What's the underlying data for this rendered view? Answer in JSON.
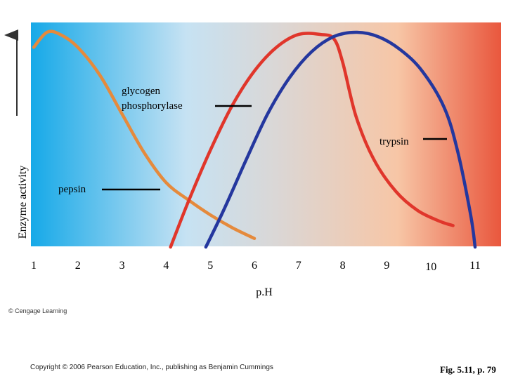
{
  "chart_data": {
    "type": "line",
    "xlabel": "p.H",
    "ylabel": "Enzyme activity",
    "xlim": [
      1,
      11
    ],
    "x_ticks": [
      "1",
      "2",
      "3",
      "4",
      "5",
      "6",
      "7",
      "8",
      "9",
      "10",
      "11"
    ],
    "background_gradient": [
      "#16a9e8",
      "#c6e2f3",
      "#dad7d6",
      "#f7c6a6",
      "#e9573d"
    ],
    "series": [
      {
        "name": "pepsin",
        "color": "#e58a3c",
        "x": [
          1.0,
          1.3,
          1.6,
          2.0,
          2.5,
          3.0,
          3.5,
          4.0,
          4.5,
          5.0,
          5.5,
          6.0
        ],
        "y": [
          0.93,
          1.0,
          0.99,
          0.93,
          0.8,
          0.62,
          0.44,
          0.3,
          0.22,
          0.15,
          0.09,
          0.04
        ]
      },
      {
        "name": "glycogen phosphorylase",
        "color": "#e0362b",
        "x": [
          4.1,
          4.5,
          5.0,
          5.5,
          6.0,
          6.5,
          7.0,
          7.5,
          7.8,
          8.0,
          8.3,
          8.7,
          9.2,
          9.7,
          10.2,
          10.5
        ],
        "y": [
          0.0,
          0.21,
          0.45,
          0.66,
          0.82,
          0.93,
          0.99,
          0.99,
          0.97,
          0.86,
          0.61,
          0.41,
          0.26,
          0.17,
          0.12,
          0.1
        ]
      },
      {
        "name": "trypsin",
        "color": "#24379e",
        "x": [
          4.9,
          5.3,
          5.8,
          6.3,
          6.8,
          7.3,
          7.8,
          8.3,
          8.8,
          9.3,
          9.8,
          10.3,
          10.6,
          10.9,
          11.0
        ],
        "y": [
          0.0,
          0.17,
          0.4,
          0.62,
          0.79,
          0.91,
          0.98,
          1.0,
          0.98,
          0.92,
          0.82,
          0.65,
          0.45,
          0.15,
          0.0
        ]
      }
    ],
    "curve_labels": [
      {
        "text_lines": [
          "glycogen",
          "phosphorylase"
        ],
        "series": "glycogen phosphorylase"
      },
      {
        "text_lines": [
          "trypsin"
        ],
        "series": "trypsin"
      },
      {
        "text_lines": [
          "pepsin"
        ],
        "series": "pepsin"
      }
    ]
  },
  "credits": {
    "cengage": "© Cengage Learning",
    "copyright": "Copyright © 2006 Pearson Education, Inc., publishing as Benjamin Cummings",
    "figure_ref": "Fig. 5.11, p. 79"
  }
}
